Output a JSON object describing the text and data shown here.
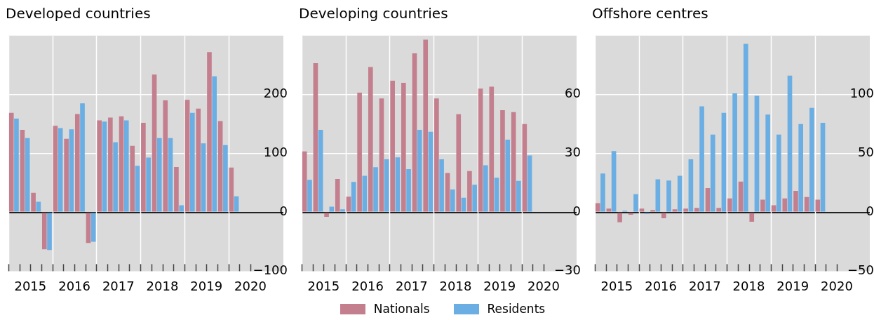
{
  "chart_data": [
    {
      "type": "bar",
      "title": "Developed countries",
      "x": [
        2015.125,
        2015.375,
        2015.625,
        2015.875,
        2016.125,
        2016.375,
        2016.625,
        2016.875,
        2017.125,
        2017.375,
        2017.625,
        2017.875,
        2018.125,
        2018.375,
        2018.625,
        2018.875,
        2019.125,
        2019.375,
        2019.625,
        2019.875,
        2020.125
      ],
      "series": [
        {
          "color": "#c47f8e",
          "values": [
            169,
            140,
            33,
            -63,
            147,
            125,
            167,
            -52,
            156,
            161,
            163,
            113,
            152,
            234,
            190,
            77,
            191,
            176,
            272,
            155,
            76
          ]
        },
        {
          "color": "#6aaee3",
          "values": [
            159,
            126,
            18,
            -64,
            143,
            141,
            185,
            -50,
            154,
            119,
            156,
            79,
            93,
            126,
            126,
            12,
            169,
            117,
            231,
            114,
            27
          ]
        }
      ],
      "xlim": [
        2015,
        2021.25
      ],
      "xticks": [
        {
          "value": 2015,
          "label": null
        },
        {
          "value": 2015.25,
          "label": null
        },
        {
          "value": 2015.5,
          "label": "2015"
        },
        {
          "value": 2015.75,
          "label": null
        },
        {
          "value": 2016,
          "label": null
        },
        {
          "value": 2016.25,
          "label": null
        },
        {
          "value": 2016.5,
          "label": "2016"
        },
        {
          "value": 2016.75,
          "label": null
        },
        {
          "value": 2017,
          "label": null
        },
        {
          "value": 2017.25,
          "label": null
        },
        {
          "value": 2017.5,
          "label": "2017"
        },
        {
          "value": 2017.75,
          "label": null
        },
        {
          "value": 2018,
          "label": null
        },
        {
          "value": 2018.25,
          "label": null
        },
        {
          "value": 2018.5,
          "label": "2018"
        },
        {
          "value": 2018.75,
          "label": null
        },
        {
          "value": 2019,
          "label": null
        },
        {
          "value": 2019.25,
          "label": null
        },
        {
          "value": 2019.5,
          "label": "2019"
        },
        {
          "value": 2019.75,
          "label": null
        },
        {
          "value": 2020,
          "label": null
        },
        {
          "value": 2020.25,
          "label": null
        },
        {
          "value": 2020.5,
          "label": "2020"
        }
      ],
      "ylim": [
        -100,
        300
      ],
      "yticks": [
        -100,
        0,
        100,
        200
      ],
      "grid": true,
      "legend": false
    },
    {
      "type": "bar",
      "title": "Developing countries",
      "x": [
        2015.125,
        2015.375,
        2015.625,
        2015.875,
        2016.125,
        2016.375,
        2016.625,
        2016.875,
        2017.125,
        2017.375,
        2017.625,
        2017.875,
        2018.125,
        2018.375,
        2018.625,
        2018.875,
        2019.125,
        2019.375,
        2019.625,
        2019.875,
        2020.125
      ],
      "series": [
        {
          "name": "Nationals",
          "color": "#c47f8e",
          "values": [
            31,
            76,
            -2.3,
            17,
            8,
            61,
            74,
            58,
            67,
            66,
            81,
            88,
            58,
            20,
            50,
            21,
            63,
            64,
            52,
            51,
            45
          ]
        },
        {
          "name": "Residents",
          "color": "#6aaee3",
          "values": [
            16.5,
            42,
            2.9,
            1.5,
            15.5,
            18.6,
            23,
            27,
            28,
            22,
            42,
            41,
            27,
            11.6,
            7.4,
            14,
            24,
            17.6,
            37,
            16,
            29
          ]
        }
      ],
      "xlim": [
        2015,
        2021.25
      ],
      "xticks": [
        {
          "value": 2015,
          "label": null
        },
        {
          "value": 2015.25,
          "label": null
        },
        {
          "value": 2015.5,
          "label": "2015"
        },
        {
          "value": 2015.75,
          "label": null
        },
        {
          "value": 2016,
          "label": null
        },
        {
          "value": 2016.25,
          "label": null
        },
        {
          "value": 2016.5,
          "label": "2016"
        },
        {
          "value": 2016.75,
          "label": null
        },
        {
          "value": 2017,
          "label": null
        },
        {
          "value": 2017.25,
          "label": null
        },
        {
          "value": 2017.5,
          "label": "2017"
        },
        {
          "value": 2017.75,
          "label": null
        },
        {
          "value": 2018,
          "label": null
        },
        {
          "value": 2018.25,
          "label": null
        },
        {
          "value": 2018.5,
          "label": "2018"
        },
        {
          "value": 2018.75,
          "label": null
        },
        {
          "value": 2019,
          "label": null
        },
        {
          "value": 2019.25,
          "label": null
        },
        {
          "value": 2019.5,
          "label": "2019"
        },
        {
          "value": 2019.75,
          "label": null
        },
        {
          "value": 2020,
          "label": null
        },
        {
          "value": 2020.25,
          "label": null
        },
        {
          "value": 2020.5,
          "label": "2020"
        }
      ],
      "ylim": [
        -30,
        90
      ],
      "yticks": [
        -30,
        0,
        30,
        60
      ],
      "grid": true,
      "legend": "bottom"
    },
    {
      "type": "bar",
      "title": "Offshore centres",
      "x": [
        2015.125,
        2015.375,
        2015.625,
        2015.875,
        2016.125,
        2016.375,
        2016.625,
        2016.875,
        2017.125,
        2017.375,
        2017.625,
        2017.875,
        2018.125,
        2018.375,
        2018.625,
        2018.875,
        2019.125,
        2019.375,
        2019.625,
        2019.875,
        2020.125
      ],
      "series": [
        {
          "color": "#c47f8e",
          "values": [
            7.8,
            3.1,
            -8.5,
            -2.1,
            3.1,
            1.9,
            -5,
            2.5,
            3.1,
            3.7,
            20.5,
            3.7,
            11.8,
            26,
            -8,
            10.7,
            6,
            11.8,
            18.2,
            13,
            10.7
          ]
        },
        {
          "color": "#6aaee3",
          "values": [
            33,
            52,
            1.4,
            15.3,
            -1.4,
            28,
            27,
            31,
            45,
            90,
            66,
            84.5,
            101,
            143,
            99,
            83,
            66,
            116,
            75,
            88.6,
            76
          ]
        }
      ],
      "xlim": [
        2015,
        2021.25
      ],
      "xticks": [
        {
          "value": 2015,
          "label": null
        },
        {
          "value": 2015.25,
          "label": null
        },
        {
          "value": 2015.5,
          "label": "2015"
        },
        {
          "value": 2015.75,
          "label": null
        },
        {
          "value": 2016,
          "label": null
        },
        {
          "value": 2016.25,
          "label": null
        },
        {
          "value": 2016.5,
          "label": "2016"
        },
        {
          "value": 2016.75,
          "label": null
        },
        {
          "value": 2017,
          "label": null
        },
        {
          "value": 2017.25,
          "label": null
        },
        {
          "value": 2017.5,
          "label": "2017"
        },
        {
          "value": 2017.75,
          "label": null
        },
        {
          "value": 2018,
          "label": null
        },
        {
          "value": 2018.25,
          "label": null
        },
        {
          "value": 2018.5,
          "label": "2018"
        },
        {
          "value": 2018.75,
          "label": null
        },
        {
          "value": 2019,
          "label": null
        },
        {
          "value": 2019.25,
          "label": null
        },
        {
          "value": 2019.5,
          "label": "2019"
        },
        {
          "value": 2019.75,
          "label": null
        },
        {
          "value": 2020,
          "label": null
        },
        {
          "value": 2020.25,
          "label": null
        },
        {
          "value": 2020.5,
          "label": "2020"
        }
      ],
      "ylim": [
        -50,
        150
      ],
      "yticks": [
        -50,
        0,
        50,
        100
      ],
      "grid": true,
      "legend": false
    }
  ]
}
